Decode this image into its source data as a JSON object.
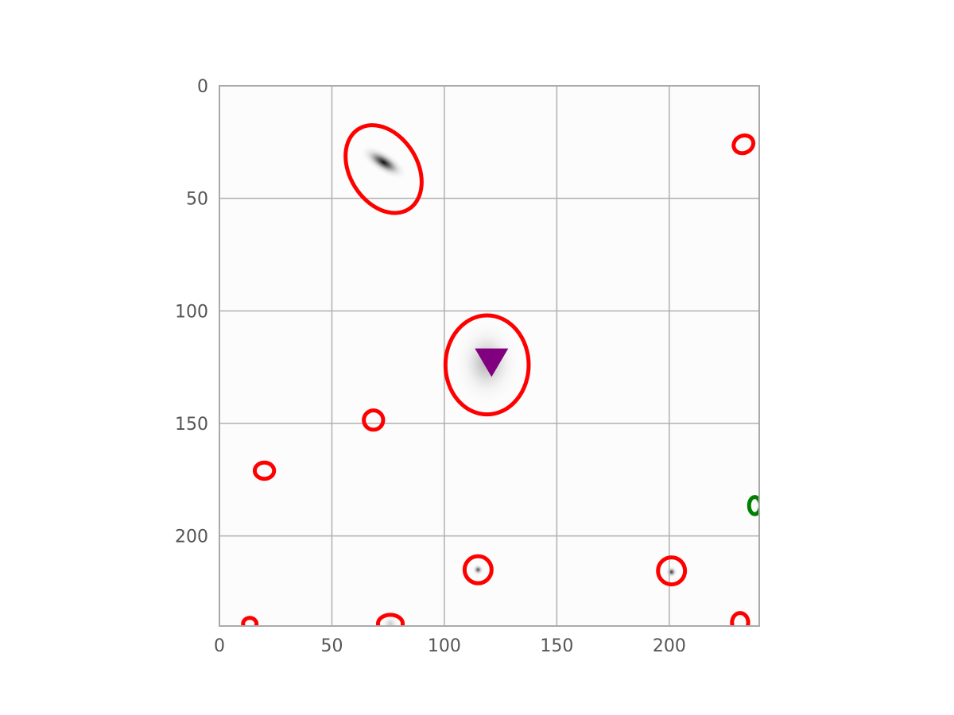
{
  "chart_data": {
    "type": "scatter",
    "title": "",
    "xlabel": "",
    "ylabel": "",
    "xlim": [
      0,
      240
    ],
    "ylim": [
      240,
      0
    ],
    "y_inverted": true,
    "grid": true,
    "x_ticks": [
      0,
      50,
      100,
      150,
      200
    ],
    "y_ticks": [
      0,
      50,
      100,
      150,
      200
    ],
    "background_image": "grayscale-star-field",
    "sources": [
      {
        "x": 73,
        "y": 34,
        "peak": 0.95,
        "spread": [
          2.2,
          5.5
        ],
        "angle_deg": -58
      },
      {
        "x": 119,
        "y": 123,
        "peak": 0.3,
        "spread": [
          7,
          9
        ],
        "angle_deg": 0
      },
      {
        "x": 115,
        "y": 215,
        "peak": 0.7,
        "spread": [
          1.2,
          1.2
        ],
        "angle_deg": 0
      },
      {
        "x": 201,
        "y": 216,
        "peak": 0.8,
        "spread": [
          1.2,
          1.2
        ],
        "angle_deg": 0
      },
      {
        "x": 76,
        "y": 239,
        "peak": 0.2,
        "spread": [
          2,
          2
        ],
        "angle_deg": 0
      }
    ],
    "ellipses": [
      {
        "x": 73,
        "y": 37,
        "rx": 15,
        "ry": 21,
        "angle_deg": -32,
        "color": "#ff0000"
      },
      {
        "x": 233,
        "y": 26,
        "rx": 4.5,
        "ry": 3.8,
        "angle_deg": -25,
        "color": "#ff0000"
      },
      {
        "x": 119,
        "y": 124,
        "rx": 18.5,
        "ry": 22,
        "angle_deg": 0,
        "color": "#ff0000"
      },
      {
        "x": 68.5,
        "y": 148.5,
        "rx": 4.3,
        "ry": 4.3,
        "angle_deg": 0,
        "color": "#ff0000"
      },
      {
        "x": 20,
        "y": 171,
        "rx": 4.3,
        "ry": 3.6,
        "angle_deg": 0,
        "color": "#ff0000"
      },
      {
        "x": 238,
        "y": 186.5,
        "rx": 2.5,
        "ry": 3.8,
        "angle_deg": 0,
        "color": "#008000"
      },
      {
        "x": 115,
        "y": 215,
        "rx": 6,
        "ry": 6,
        "angle_deg": 0,
        "color": "#ff0000"
      },
      {
        "x": 201,
        "y": 215.5,
        "rx": 6,
        "ry": 6,
        "angle_deg": 0,
        "color": "#ff0000"
      },
      {
        "x": 13.5,
        "y": 239,
        "rx": 3,
        "ry": 2.6,
        "angle_deg": 0,
        "color": "#ff0000"
      },
      {
        "x": 76,
        "y": 239,
        "rx": 5.5,
        "ry": 4,
        "angle_deg": 0,
        "color": "#ff0000"
      },
      {
        "x": 231.5,
        "y": 238.5,
        "rx": 3.6,
        "ry": 4.3,
        "angle_deg": 0,
        "color": "#ff0000"
      }
    ],
    "markers": [
      {
        "x": 121,
        "y": 123,
        "shape": "triangle-down",
        "color": "#800080"
      }
    ],
    "colors": {
      "grid": "#b0b0b0",
      "axis": "#aaaaaa",
      "tick_label": "#555555"
    }
  }
}
